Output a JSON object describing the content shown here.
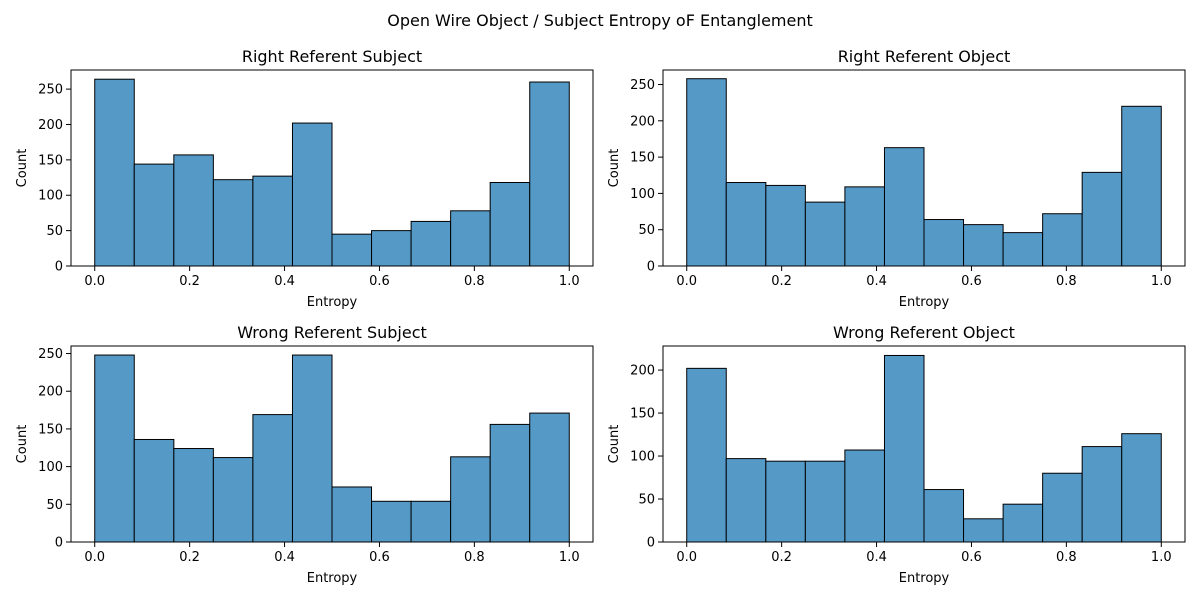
{
  "figure": {
    "suptitle": "Open Wire Object / Subject Entropy oF Entanglement"
  },
  "style": {
    "bar_fill": "#5599c7",
    "bar_edge": "#000000",
    "axis_color": "#000000",
    "background": "#ffffff"
  },
  "chart_data": [
    {
      "type": "bar",
      "title": "Right Referent Subject",
      "xlabel": "Entropy",
      "ylabel": "Count",
      "bin_edges": [
        0.0,
        0.0833,
        0.1667,
        0.25,
        0.3333,
        0.4167,
        0.5,
        0.5833,
        0.6667,
        0.75,
        0.8333,
        0.9167,
        1.0
      ],
      "values": [
        264,
        144,
        157,
        122,
        127,
        202,
        45,
        50,
        63,
        78,
        118,
        260
      ],
      "xlim": [
        -0.05,
        1.05
      ],
      "ylim": [
        0,
        277
      ],
      "xticks": [
        0.0,
        0.2,
        0.4,
        0.6,
        0.8,
        1.0
      ],
      "xtick_labels": [
        "0.0",
        "0.2",
        "0.4",
        "0.6",
        "0.8",
        "1.0"
      ],
      "yticks": [
        0,
        50,
        100,
        150,
        200,
        250
      ],
      "ytick_labels": [
        "0",
        "50",
        "100",
        "150",
        "200",
        "250"
      ],
      "grid": false
    },
    {
      "type": "bar",
      "title": "Right Referent Object",
      "xlabel": "Entropy",
      "ylabel": "Count",
      "bin_edges": [
        0.0,
        0.0833,
        0.1667,
        0.25,
        0.3333,
        0.4167,
        0.5,
        0.5833,
        0.6667,
        0.75,
        0.8333,
        0.9167,
        1.0
      ],
      "values": [
        258,
        115,
        111,
        88,
        109,
        163,
        64,
        57,
        46,
        72,
        129,
        220
      ],
      "xlim": [
        -0.05,
        1.05
      ],
      "ylim": [
        0,
        270
      ],
      "xticks": [
        0.0,
        0.2,
        0.4,
        0.6,
        0.8,
        1.0
      ],
      "xtick_labels": [
        "0.0",
        "0.2",
        "0.4",
        "0.6",
        "0.8",
        "1.0"
      ],
      "yticks": [
        0,
        50,
        100,
        150,
        200,
        250
      ],
      "ytick_labels": [
        "0",
        "50",
        "100",
        "150",
        "200",
        "250"
      ],
      "grid": false
    },
    {
      "type": "bar",
      "title": "Wrong Referent Subject",
      "xlabel": "Entropy",
      "ylabel": "Count",
      "bin_edges": [
        0.0,
        0.0833,
        0.1667,
        0.25,
        0.3333,
        0.4167,
        0.5,
        0.5833,
        0.6667,
        0.75,
        0.8333,
        0.9167,
        1.0
      ],
      "values": [
        248,
        136,
        124,
        112,
        169,
        248,
        73,
        54,
        54,
        113,
        156,
        171
      ],
      "xlim": [
        -0.05,
        1.05
      ],
      "ylim": [
        0,
        260
      ],
      "xticks": [
        0.0,
        0.2,
        0.4,
        0.6,
        0.8,
        1.0
      ],
      "xtick_labels": [
        "0.0",
        "0.2",
        "0.4",
        "0.6",
        "0.8",
        "1.0"
      ],
      "yticks": [
        0,
        50,
        100,
        150,
        200,
        250
      ],
      "ytick_labels": [
        "0",
        "50",
        "100",
        "150",
        "200",
        "250"
      ],
      "grid": false
    },
    {
      "type": "bar",
      "title": "Wrong Referent Object",
      "xlabel": "Entropy",
      "ylabel": "Count",
      "bin_edges": [
        0.0,
        0.0833,
        0.1667,
        0.25,
        0.3333,
        0.4167,
        0.5,
        0.5833,
        0.6667,
        0.75,
        0.8333,
        0.9167,
        1.0
      ],
      "values": [
        202,
        97,
        94,
        94,
        107,
        217,
        61,
        27,
        44,
        80,
        111,
        126
      ],
      "xlim": [
        -0.05,
        1.05
      ],
      "ylim": [
        0,
        228
      ],
      "xticks": [
        0.0,
        0.2,
        0.4,
        0.6,
        0.8,
        1.0
      ],
      "xtick_labels": [
        "0.0",
        "0.2",
        "0.4",
        "0.6",
        "0.8",
        "1.0"
      ],
      "yticks": [
        0,
        50,
        100,
        150,
        200
      ],
      "ytick_labels": [
        "0",
        "50",
        "100",
        "150",
        "200"
      ],
      "grid": false
    }
  ]
}
